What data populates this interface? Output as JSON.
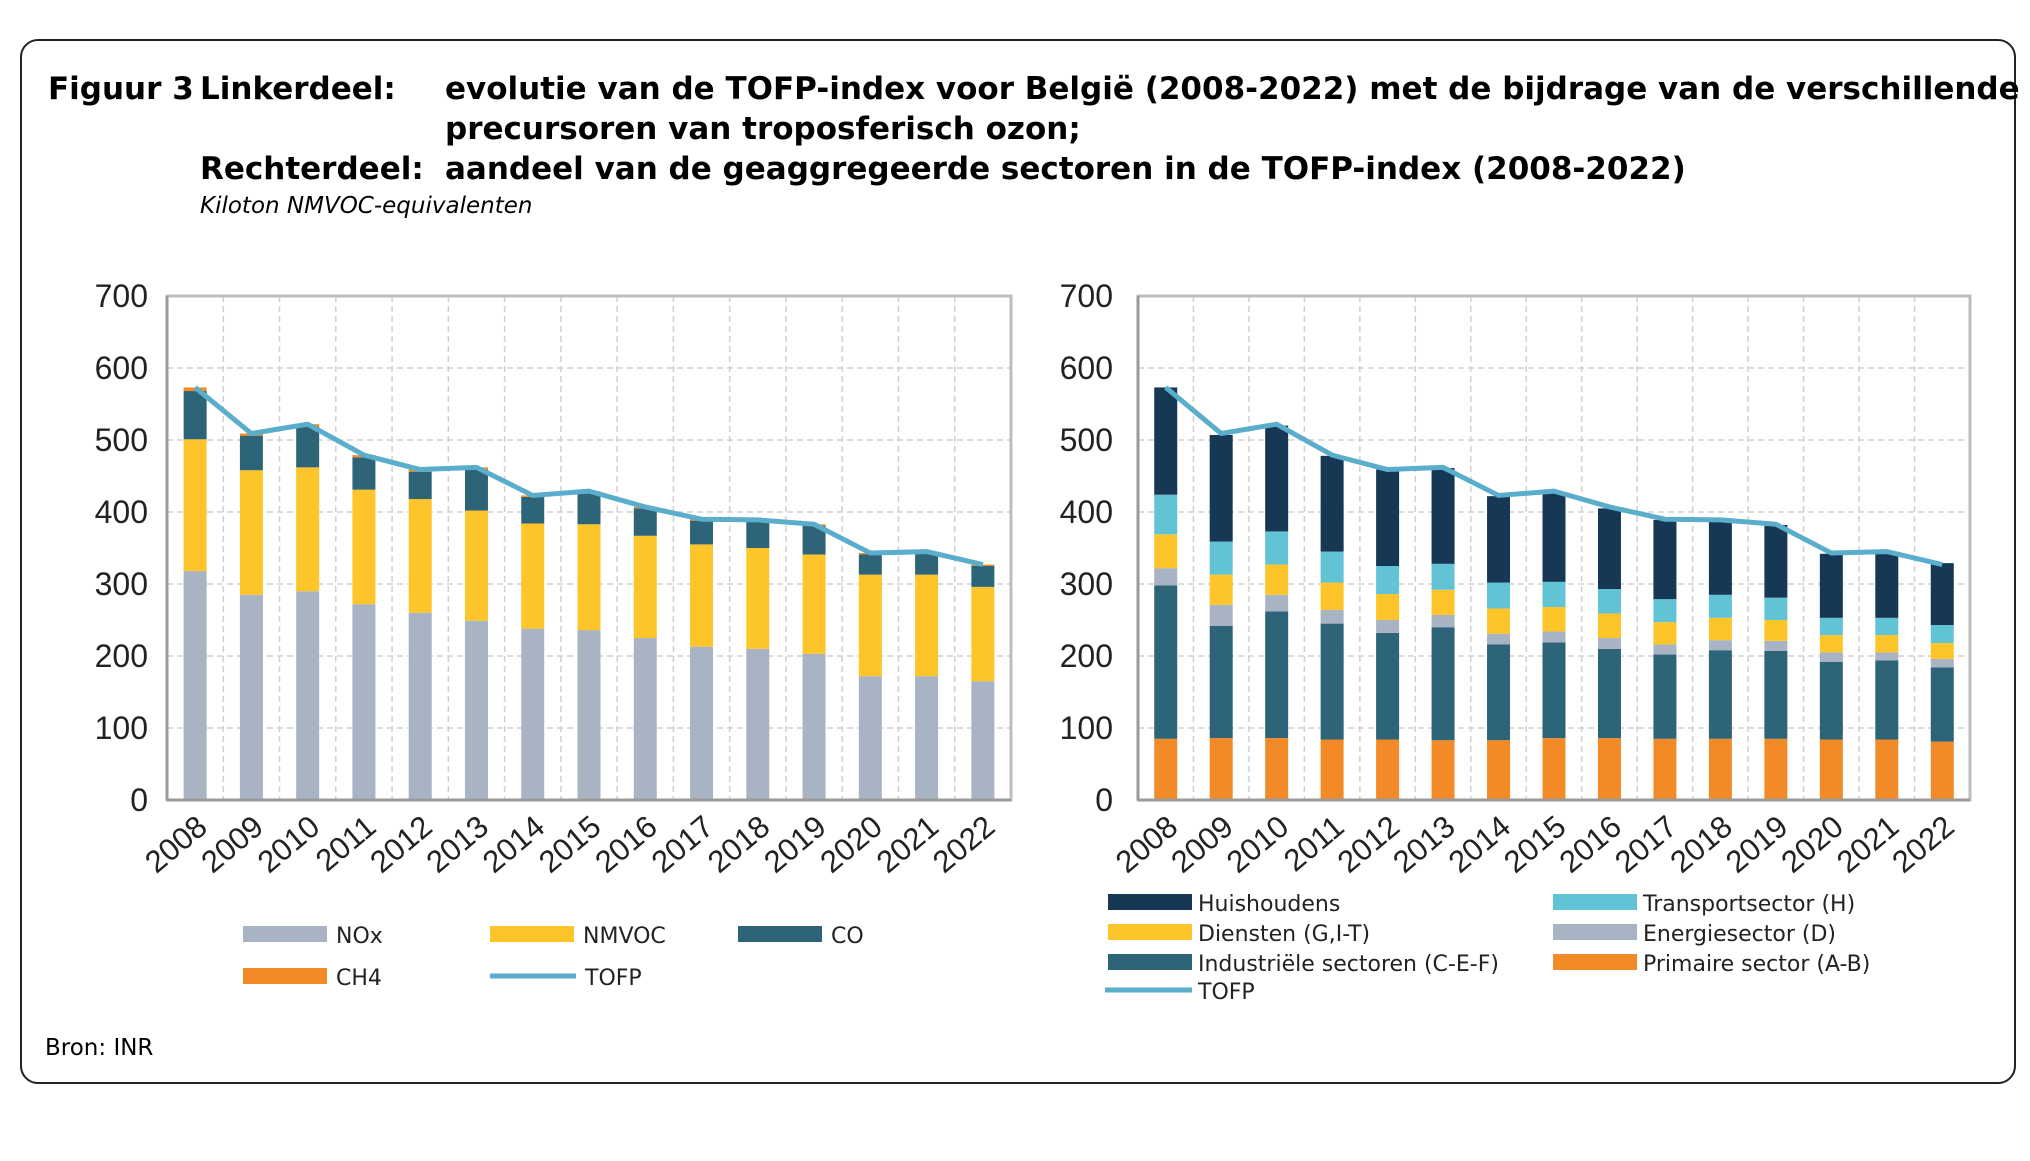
{
  "header": {
    "figure_label": "Figuur 3",
    "left_label": "Linkerdeel:",
    "left_text_1": "evolutie van de TOFP-index voor België (2008-2022) met de bijdrage van de verschillende",
    "left_text_2": "precursoren van troposferisch ozon;",
    "right_label": "Rechterdeel:",
    "right_text": "aandeel van de geaggregeerde sectoren in de TOFP-index (2008-2022)",
    "unit": "Kiloton NMVOC-equivalenten"
  },
  "footer": {
    "source": "Bron: INR"
  },
  "chart_data": [
    {
      "type": "bar",
      "stacked": true,
      "title": "evolutie van de TOFP-index voor België (2008-2022) met de bijdrage van de verschillende precursoren van troposferisch ozon",
      "ylabel": "Kiloton NMVOC-equivalenten",
      "ylim": [
        0,
        700
      ],
      "yticks": [
        0,
        100,
        200,
        300,
        400,
        500,
        600,
        700
      ],
      "grid": true,
      "legend_position": "bottom",
      "categories": [
        "2008",
        "2009",
        "2010",
        "2011",
        "2012",
        "2013",
        "2014",
        "2015",
        "2016",
        "2017",
        "2018",
        "2019",
        "2020",
        "2021",
        "2022"
      ],
      "series": [
        {
          "name": "NOx",
          "color": "#a8b4c4",
          "values": [
            318,
            285,
            290,
            272,
            260,
            249,
            238,
            236,
            225,
            213,
            210,
            203,
            172,
            172,
            165
          ]
        },
        {
          "name": "NMVOC",
          "color": "#fdc52a",
          "values": [
            183,
            173,
            172,
            159,
            158,
            153,
            146,
            147,
            142,
            142,
            140,
            138,
            141,
            141,
            131
          ]
        },
        {
          "name": "CO",
          "color": "#2e6478",
          "values": [
            67,
            48,
            57,
            45,
            38,
            57,
            37,
            44,
            38,
            33,
            37,
            40,
            28,
            30,
            29
          ]
        },
        {
          "name": "CH4",
          "color": "#f28a28",
          "values": [
            5,
            3,
            3,
            3,
            3,
            3,
            2,
            2,
            2,
            2,
            2,
            2,
            2,
            2,
            2
          ]
        }
      ],
      "line": {
        "name": "TOFP",
        "color": "#5aaecb",
        "values": [
          573,
          509,
          522,
          479,
          459,
          462,
          423,
          429,
          407,
          390,
          389,
          383,
          343,
          345,
          327
        ]
      },
      "legend": [
        "NOx",
        "NMVOC",
        "CO",
        "CH4",
        "TOFP"
      ]
    },
    {
      "type": "bar",
      "stacked": true,
      "title": "aandeel van de geaggregeerde sectoren in de TOFP-index (2008-2022)",
      "ylabel": "Kiloton NMVOC-equivalenten",
      "ylim": [
        0,
        700
      ],
      "yticks": [
        0,
        100,
        200,
        300,
        400,
        500,
        600,
        700
      ],
      "grid": true,
      "legend_position": "bottom",
      "categories": [
        "2008",
        "2009",
        "2010",
        "2011",
        "2012",
        "2013",
        "2014",
        "2015",
        "2016",
        "2017",
        "2018",
        "2019",
        "2020",
        "2021",
        "2022"
      ],
      "series": [
        {
          "name": "Primaire sector (A-B)",
          "color": "#f28a28",
          "values": [
            85,
            86,
            86,
            84,
            84,
            83,
            83,
            86,
            86,
            85,
            85,
            85,
            84,
            84,
            81
          ]
        },
        {
          "name": "Industriële sectoren (C-E-F)",
          "color": "#2e6478",
          "values": [
            213,
            156,
            176,
            161,
            148,
            157,
            133,
            133,
            124,
            117,
            123,
            122,
            108,
            110,
            103
          ]
        },
        {
          "name": "Energiesector (D)",
          "color": "#a8b4c4",
          "values": [
            24,
            29,
            23,
            19,
            18,
            17,
            15,
            15,
            15,
            14,
            14,
            14,
            13,
            11,
            12
          ]
        },
        {
          "name": "Diensten (G,I-T)",
          "color": "#fdc52a",
          "values": [
            47,
            42,
            42,
            38,
            36,
            35,
            35,
            34,
            34,
            31,
            31,
            29,
            24,
            24,
            22
          ]
        },
        {
          "name": "Transportsector (H)",
          "color": "#62c3d5",
          "values": [
            55,
            46,
            46,
            43,
            39,
            36,
            36,
            35,
            34,
            32,
            32,
            31,
            24,
            24,
            25
          ]
        },
        {
          "name": "Huishoudens",
          "color": "#173854",
          "values": [
            149,
            148,
            147,
            133,
            134,
            133,
            120,
            124,
            112,
            110,
            103,
            101,
            89,
            89,
            86
          ]
        }
      ],
      "line": {
        "name": "TOFP",
        "color": "#5aaecb",
        "values": [
          573,
          509,
          522,
          479,
          459,
          462,
          423,
          429,
          407,
          390,
          389,
          383,
          343,
          345,
          327
        ]
      },
      "legend": [
        "Huishoudens",
        "Transportsector (H)",
        "Diensten (G,I-T)",
        "Energiesector (D)",
        "Industriële sectoren (C-E-F)",
        "Primaire sector (A-B)",
        "TOFP"
      ]
    }
  ]
}
